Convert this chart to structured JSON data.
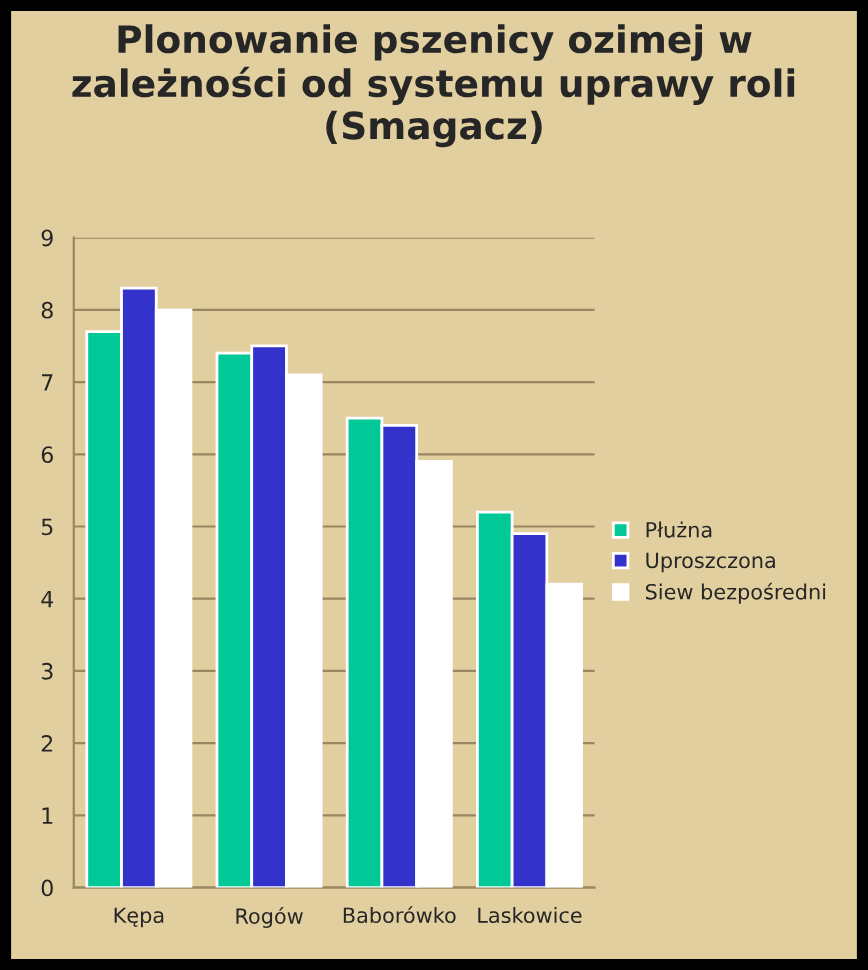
{
  "chart_data": {
    "type": "bar",
    "title": "Plonowanie pszenicy ozimej w zależności od systemu uprawy roli (Smagacz)",
    "categories": [
      "Kępa",
      "Rogów",
      "Baborówko",
      "Laskowice"
    ],
    "series": [
      {
        "name": "Płużna",
        "color": "#00c896",
        "values": [
          7.7,
          7.4,
          6.5,
          5.2
        ]
      },
      {
        "name": "Uproszczona",
        "color": "#3333cc",
        "values": [
          8.3,
          7.5,
          6.4,
          4.9
        ]
      },
      {
        "name": "Siew bezpośredni",
        "color": "#ffffff",
        "values": [
          8.0,
          7.1,
          5.9,
          4.2
        ]
      }
    ],
    "ylim": [
      0,
      9
    ],
    "yticks": [
      0,
      1,
      2,
      3,
      4,
      5,
      6,
      7,
      8,
      9
    ],
    "grid": "y",
    "legend": "right"
  }
}
